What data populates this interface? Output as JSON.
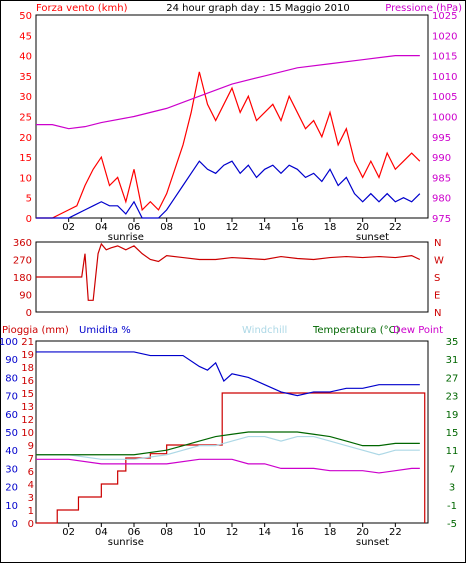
{
  "chart_data": [
    {
      "type": "line",
      "title": "24 hour graph day : 15 Maggio 2010",
      "left_axis_label": "Forza vento (kmh)",
      "right_axis_label": "Pressione (hPa)",
      "x_ticks": [
        "02",
        "04",
        "06",
        "08",
        "10",
        "12",
        "14",
        "16",
        "18",
        "20",
        "22"
      ],
      "x_range_hours": [
        0,
        24
      ],
      "ylim_left": [
        0,
        50
      ],
      "yticks_left": [
        "0",
        "5",
        "10",
        "15",
        "20",
        "25",
        "30",
        "35",
        "40",
        "45",
        "50"
      ],
      "ylim_right": [
        975,
        1025
      ],
      "yticks_right": [
        "975",
        "980",
        "985",
        "990",
        "995",
        "1000",
        "1005",
        "1010",
        "1015",
        "1020",
        "1025"
      ],
      "events": [
        {
          "label": "sunrise",
          "hour": 5.5
        },
        {
          "label": "sunset",
          "hour": 20.6
        }
      ],
      "series": [
        {
          "axis": "left",
          "color": "#ff0000",
          "x": [
            0,
            1,
            2,
            2.5,
            3,
            3.5,
            4,
            4.5,
            5,
            5.5,
            6,
            6.5,
            7,
            7.5,
            8,
            8.5,
            9,
            9.5,
            10,
            10.5,
            11,
            11.5,
            12,
            12.5,
            13,
            13.5,
            14,
            14.5,
            15,
            15.5,
            16,
            16.5,
            17,
            17.5,
            18,
            18.5,
            19,
            19.5,
            20,
            20.5,
            21,
            21.5,
            22,
            22.5,
            23,
            23.5
          ],
          "y": [
            0,
            0,
            2,
            3,
            8,
            12,
            15,
            8,
            10,
            4,
            12,
            2,
            4,
            2,
            6,
            12,
            18,
            26,
            36,
            28,
            24,
            28,
            32,
            26,
            30,
            24,
            26,
            28,
            24,
            30,
            26,
            22,
            24,
            20,
            26,
            18,
            22,
            14,
            10,
            14,
            10,
            16,
            12,
            14,
            16,
            14
          ]
        },
        {
          "axis": "left",
          "color": "#0000cc",
          "x": [
            0,
            1,
            2,
            2.5,
            3,
            3.5,
            4,
            4.5,
            5,
            5.5,
            6,
            6.5,
            7,
            7.5,
            8,
            8.5,
            9,
            9.5,
            10,
            10.5,
            11,
            11.5,
            12,
            12.5,
            13,
            13.5,
            14,
            14.5,
            15,
            15.5,
            16,
            16.5,
            17,
            17.5,
            18,
            18.5,
            19,
            19.5,
            20,
            20.5,
            21,
            21.5,
            22,
            22.5,
            23,
            23.5
          ],
          "y": [
            0,
            0,
            0,
            1,
            2,
            3,
            4,
            3,
            3,
            1,
            4,
            0,
            0,
            0,
            2,
            5,
            8,
            11,
            14,
            12,
            11,
            13,
            14,
            11,
            13,
            10,
            12,
            13,
            11,
            13,
            12,
            10,
            11,
            9,
            12,
            8,
            10,
            6,
            4,
            6,
            4,
            6,
            4,
            5,
            4,
            6
          ]
        },
        {
          "axis": "right",
          "color": "#cc00cc",
          "x": [
            0,
            1,
            2,
            3,
            4,
            6,
            8,
            10,
            12,
            14,
            16,
            18,
            20,
            22,
            23.5
          ],
          "y": [
            998,
            998,
            997,
            997.5,
            998.5,
            1000,
            1002,
            1005,
            1008,
            1010,
            1012,
            1013,
            1014,
            1015,
            1015
          ]
        }
      ]
    },
    {
      "type": "line",
      "ylim": [
        0,
        360
      ],
      "yticks_left": [
        "0",
        "90",
        "180",
        "270",
        "360"
      ],
      "yticks_right": [
        "N",
        "E",
        "S",
        "W",
        "N"
      ],
      "x_range_hours": [
        0,
        24
      ],
      "series": [
        {
          "color": "#cc0000",
          "x": [
            0,
            2,
            2.8,
            3,
            3.2,
            3.5,
            3.8,
            4,
            4.3,
            4.6,
            5,
            5.5,
            6,
            6.5,
            7,
            7.5,
            8,
            9,
            10,
            11,
            12,
            13,
            14,
            15,
            16,
            17,
            18,
            19,
            20,
            21,
            22,
            23,
            23.5
          ],
          "y": [
            180,
            180,
            180,
            300,
            60,
            60,
            300,
            350,
            320,
            330,
            340,
            320,
            340,
            300,
            270,
            260,
            290,
            280,
            270,
            270,
            280,
            275,
            270,
            285,
            275,
            270,
            280,
            285,
            280,
            285,
            280,
            290,
            270
          ]
        }
      ]
    },
    {
      "type": "line",
      "legend": [
        "Pioggia (mm)",
        "Umidita %",
        "Windchill",
        "Temperatura (°C)",
        "Dew Point"
      ],
      "x_ticks": [
        "02",
        "04",
        "06",
        "08",
        "10",
        "12",
        "14",
        "16",
        "18",
        "20",
        "22"
      ],
      "x_range_hours": [
        0,
        24
      ],
      "events": [
        {
          "label": "sunrise",
          "hour": 5.5
        },
        {
          "label": "sunset",
          "hour": 20.6
        }
      ],
      "ylim_left_rain": [
        0,
        21
      ],
      "yticks_left_rain": [
        "0",
        "1",
        "3",
        "4",
        "6",
        "7",
        "9",
        "10",
        "12",
        "13",
        "15",
        "16",
        "18",
        "19",
        "21"
      ],
      "ylim_left_humidity": [
        0,
        100
      ],
      "yticks_left_humidity": [
        "0",
        "10",
        "20",
        "30",
        "40",
        "50",
        "60",
        "70",
        "80",
        "90",
        "100"
      ],
      "ylim_right": [
        -5,
        35
      ],
      "yticks_right": [
        "-5",
        "-1",
        "3",
        "7",
        "11",
        "15",
        "19",
        "23",
        "27",
        "31",
        "35"
      ],
      "series": [
        {
          "name": "Pioggia (mm)",
          "axis": "rain",
          "color": "#cc0000",
          "x": [
            0,
            1,
            1.3,
            2,
            2.6,
            3,
            4,
            5,
            5.5,
            6,
            7,
            8,
            9,
            10,
            11,
            11.4,
            12,
            14,
            16,
            18,
            20,
            22,
            23.7,
            23.8
          ],
          "y": [
            0,
            0,
            1.5,
            1.5,
            3,
            3,
            4.5,
            6,
            7.5,
            7.5,
            8,
            9,
            9,
            9,
            9,
            15,
            15,
            15,
            15,
            15,
            15,
            15,
            15,
            0
          ]
        },
        {
          "name": "Umidita %",
          "axis": "humidity",
          "color": "#0000cc",
          "x": [
            0,
            1,
            2,
            3,
            4,
            5,
            6,
            7,
            8,
            9,
            10,
            10.5,
            11,
            11.5,
            12,
            13,
            14,
            15,
            16,
            17,
            18,
            19,
            20,
            21,
            22,
            23,
            23.5
          ],
          "y": [
            94,
            94,
            94,
            94,
            94,
            94,
            94,
            92,
            92,
            92,
            86,
            84,
            88,
            78,
            82,
            80,
            76,
            72,
            70,
            72,
            72,
            74,
            74,
            76,
            76,
            76,
            76
          ]
        },
        {
          "name": "Windchill",
          "axis": "right",
          "color": "#add8e6",
          "x": [
            0,
            2,
            4,
            6,
            8,
            9,
            10,
            11,
            12,
            13,
            14,
            15,
            16,
            17,
            18,
            19,
            20,
            21,
            22,
            23,
            23.5
          ],
          "y": [
            10,
            10,
            9,
            9,
            10,
            11,
            12,
            12,
            13,
            14,
            14,
            13,
            14,
            14,
            13,
            12,
            11,
            10,
            11,
            11,
            11
          ]
        },
        {
          "name": "Temperatura (°C)",
          "axis": "right",
          "color": "#006600",
          "x": [
            0,
            2,
            4,
            6,
            8,
            9,
            10,
            11,
            12,
            13,
            14,
            15,
            16,
            17,
            18,
            19,
            20,
            21,
            22,
            23,
            23.5
          ],
          "y": [
            10,
            10,
            10,
            10,
            11,
            12,
            13,
            14,
            14.5,
            15,
            15,
            15,
            15,
            14.5,
            14,
            13,
            12,
            12,
            12.5,
            12.5,
            12.5
          ]
        },
        {
          "name": "Dew Point",
          "axis": "right",
          "color": "#cc00cc",
          "x": [
            0,
            2,
            4,
            6,
            8,
            10,
            11,
            12,
            13,
            14,
            15,
            16,
            17,
            18,
            19,
            20,
            21,
            22,
            23,
            23.5
          ],
          "y": [
            9,
            9,
            8,
            8,
            8,
            9,
            9,
            9,
            8,
            8,
            7,
            7,
            7,
            6.5,
            6.5,
            6.5,
            6,
            6.5,
            7,
            7
          ]
        }
      ]
    }
  ]
}
